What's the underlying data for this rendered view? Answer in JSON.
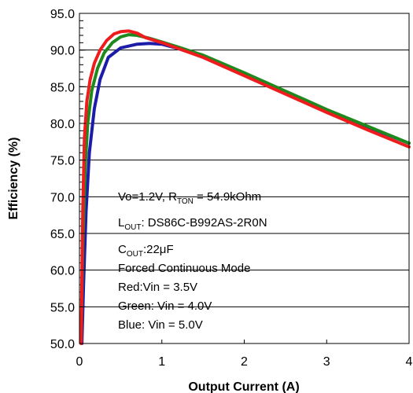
{
  "chart_data": {
    "type": "line",
    "xlabel": "Output Current (A)",
    "ylabel": "Efficiency (%)",
    "xlim": [
      0,
      4
    ],
    "ylim": [
      50,
      95
    ],
    "x_ticks": [
      "0",
      "1",
      "2",
      "3",
      "4"
    ],
    "y_ticks": [
      "50.0",
      "55.0",
      "60.0",
      "65.0",
      "70.0",
      "75.0",
      "80.0",
      "85.0",
      "90.0",
      "95.0"
    ],
    "grid": "horizontal",
    "annotation": {
      "line1_main": "Vo=1.2V,  R",
      "line1_sub": "TON",
      "line1_rest": " = 54.9kOhm",
      "line2_main": "L",
      "line2_sub": "OUT",
      "line2_rest": ": DS86C-B992AS-2R0N",
      "line3_main": "C",
      "line3_sub": "OUT",
      "line3_rest": ":22μF",
      "line4": "Forced Continuous Mode",
      "line5": "Red:Vin = 3.5V",
      "line6": "Green: Vin = 4.0V",
      "line7": "Blue: Vin = 5.0V"
    },
    "series": [
      {
        "color": "#1c1ca8",
        "x": [
          0.03,
          0.05,
          0.08,
          0.12,
          0.18,
          0.25,
          0.35,
          0.5,
          0.7,
          0.85,
          1.0,
          1.2,
          1.5,
          2.0,
          2.5,
          3.0,
          3.5,
          4.0
        ],
        "y": [
          50.0,
          58.0,
          68.0,
          76.0,
          82.0,
          86.0,
          89.0,
          90.3,
          90.8,
          90.9,
          90.8,
          90.2,
          89.1,
          86.8,
          84.2,
          81.8,
          79.5,
          77.3
        ]
      },
      {
        "color": "#1e8a1e",
        "x": [
          0.02,
          0.04,
          0.07,
          0.1,
          0.15,
          0.22,
          0.3,
          0.4,
          0.5,
          0.6,
          0.7,
          0.85,
          1.0,
          1.2,
          1.5,
          2.0,
          2.5,
          3.0,
          3.5,
          4.0
        ],
        "y": [
          50.0,
          63.0,
          74.0,
          80.0,
          84.5,
          87.5,
          89.6,
          91.0,
          91.8,
          92.1,
          92.0,
          91.6,
          91.1,
          90.4,
          89.3,
          86.9,
          84.4,
          81.9,
          79.6,
          77.3
        ]
      },
      {
        "color": "#ee1c1c",
        "x": [
          0.02,
          0.04,
          0.06,
          0.09,
          0.13,
          0.18,
          0.25,
          0.33,
          0.42,
          0.5,
          0.6,
          0.7,
          0.8,
          1.0,
          1.2,
          1.5,
          2.0,
          2.5,
          3.0,
          3.5,
          4.0
        ],
        "y": [
          50.0,
          68.0,
          78.0,
          83.0,
          86.0,
          88.2,
          90.0,
          91.3,
          92.2,
          92.5,
          92.6,
          92.3,
          91.7,
          91.0,
          90.2,
          89.0,
          86.5,
          84.0,
          81.5,
          79.1,
          76.8
        ]
      }
    ]
  }
}
